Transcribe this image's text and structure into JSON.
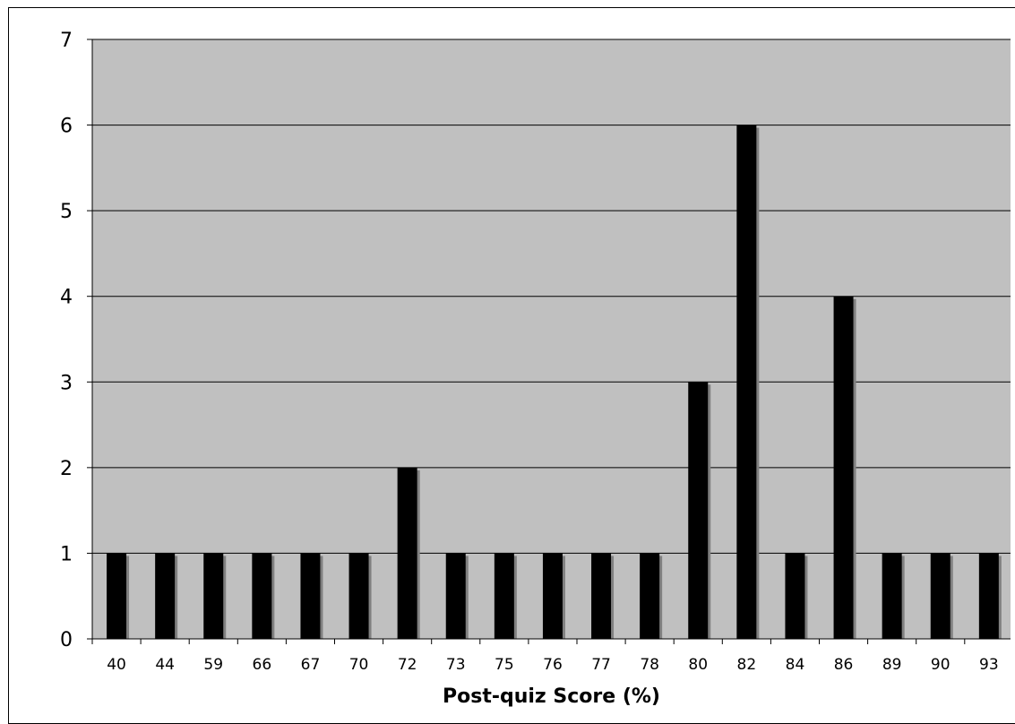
{
  "chart_data": {
    "type": "bar",
    "title": "",
    "xlabel": "Post-quiz Score (%)",
    "ylabel": "",
    "categories": [
      "40",
      "44",
      "59",
      "66",
      "67",
      "70",
      "72",
      "73",
      "75",
      "76",
      "77",
      "78",
      "80",
      "82",
      "84",
      "86",
      "89",
      "90",
      "93"
    ],
    "values": [
      1,
      1,
      1,
      1,
      1,
      1,
      2,
      1,
      1,
      1,
      1,
      1,
      3,
      6,
      1,
      4,
      1,
      1,
      1
    ],
    "ylim": [
      0,
      7
    ],
    "yticks": [
      "0",
      "1",
      "2",
      "3",
      "4",
      "5",
      "6",
      "7"
    ],
    "grid": true,
    "colors": {
      "plot_background": "#c0c0c0",
      "bar": "#000000",
      "bar_shadow": "#808080",
      "gridline": "#000000"
    }
  }
}
